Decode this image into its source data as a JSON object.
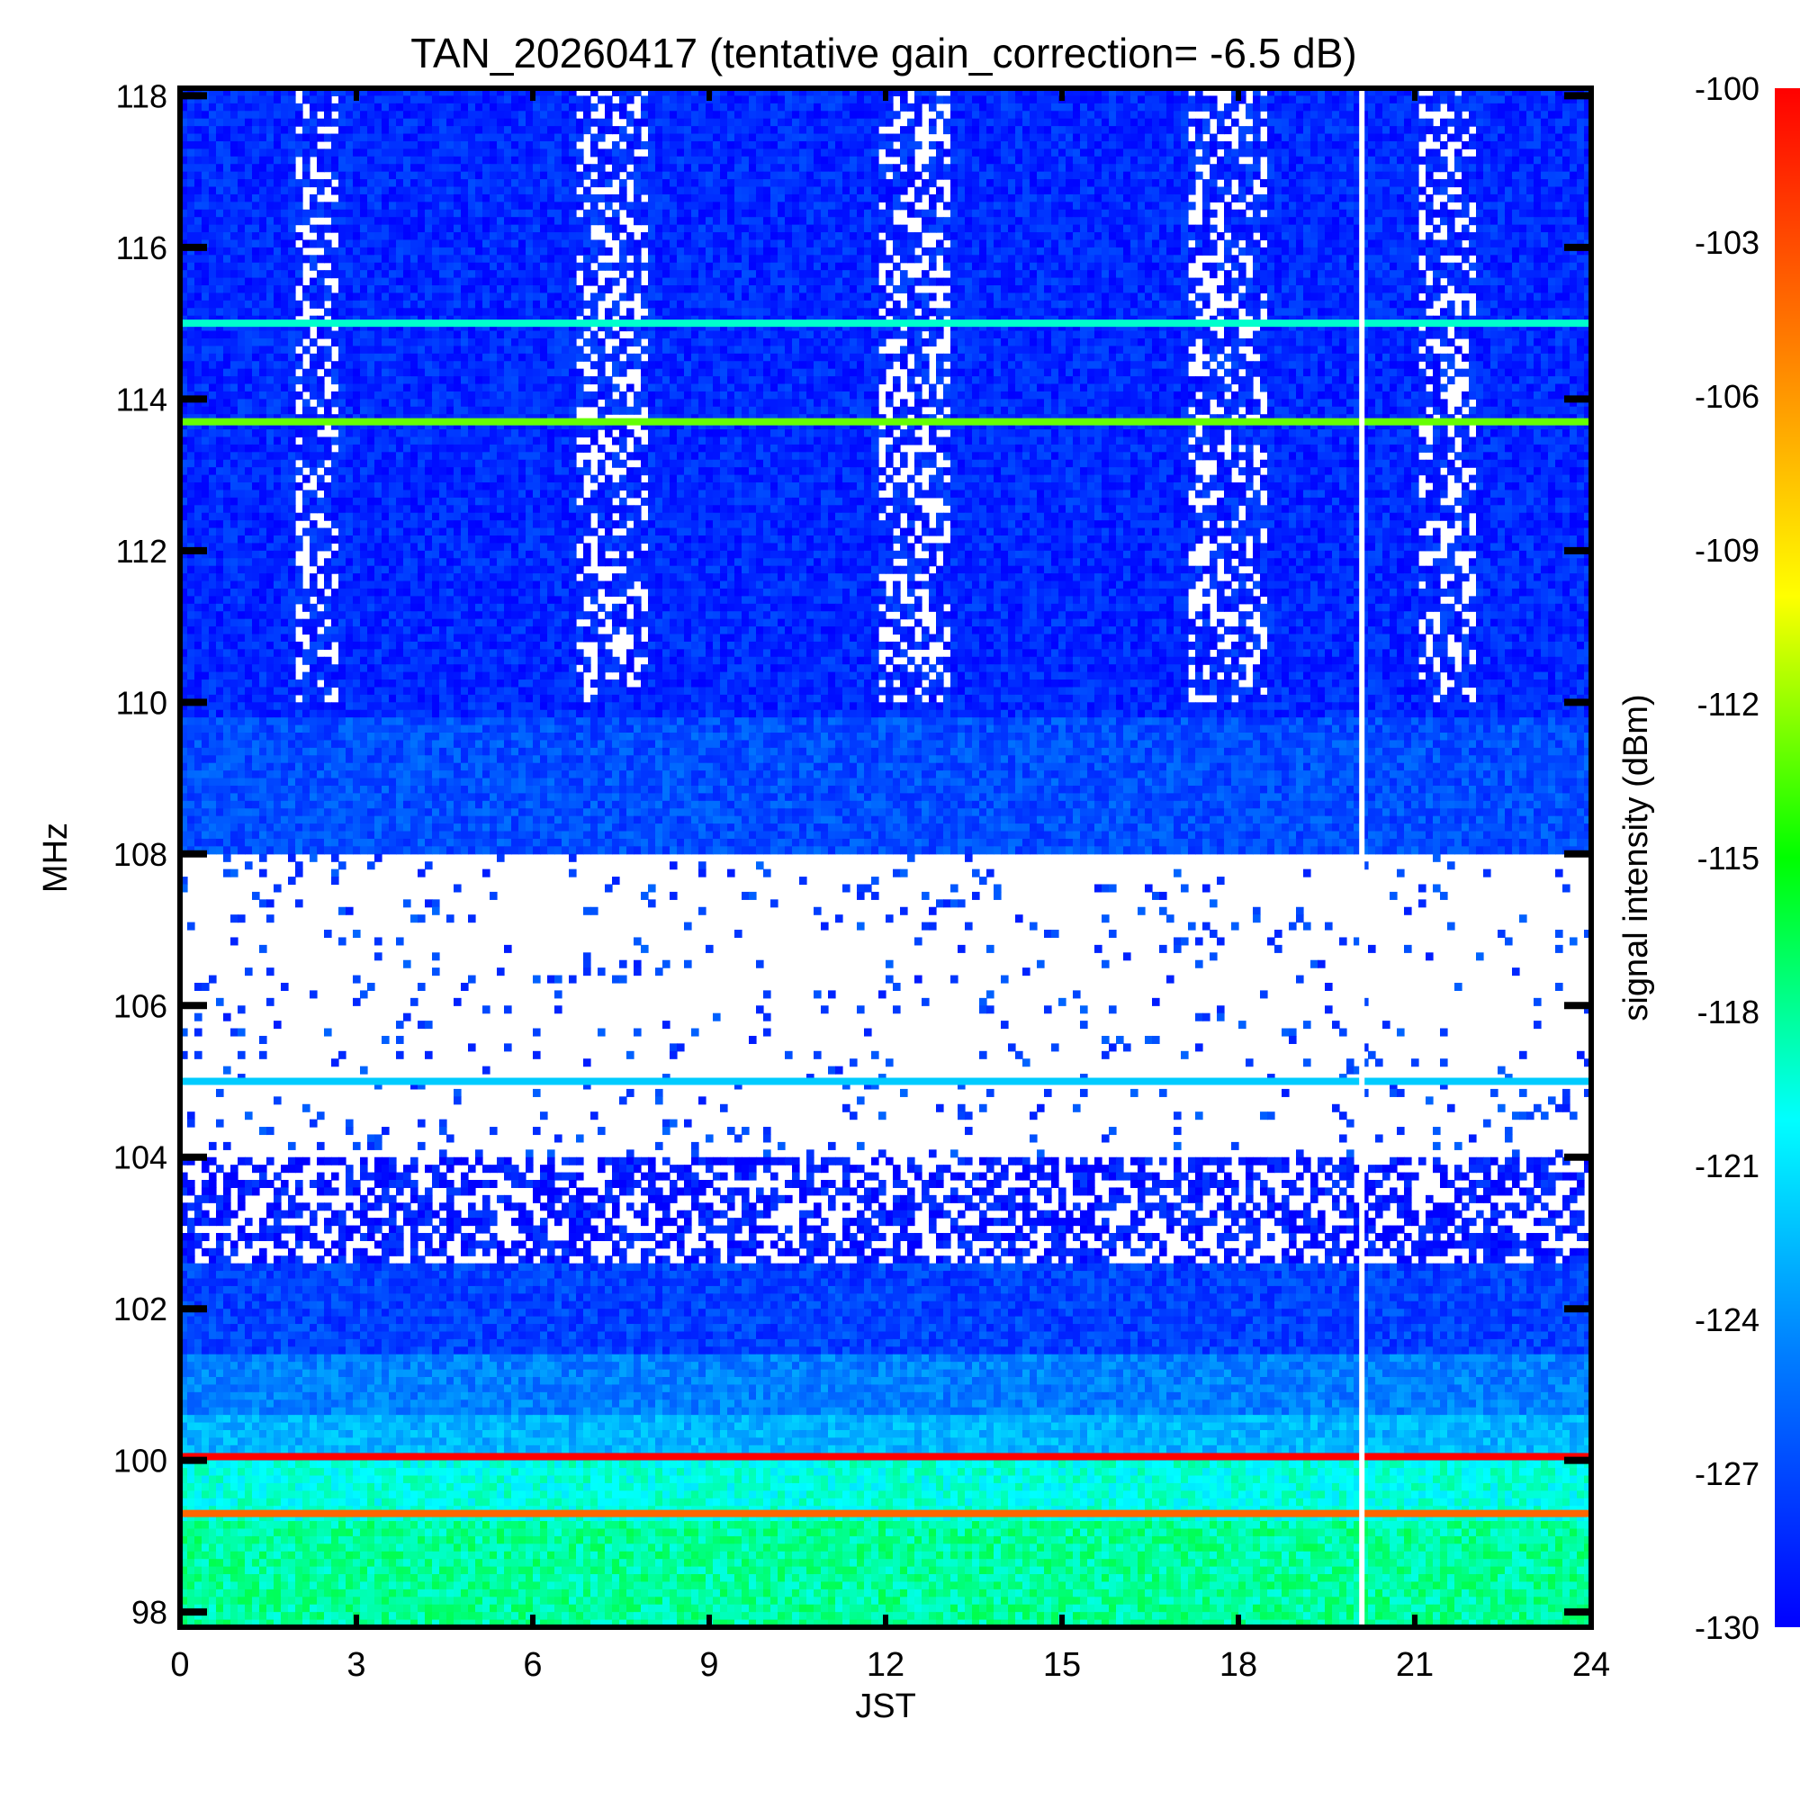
{
  "chart_data": {
    "type": "heatmap",
    "title": "TAN_20260417 (tentative gain_correction= -6.5 dB)",
    "xlabel": "JST",
    "ylabel": "MHz",
    "colorbar_label": "signal intensity (dBm)",
    "x_range": [
      0,
      24
    ],
    "y_range": [
      97.8,
      118.1
    ],
    "x_ticks": [
      "0",
      "3",
      "6",
      "9",
      "12",
      "15",
      "18",
      "21",
      "24"
    ],
    "y_ticks": [
      "98",
      "100",
      "102",
      "104",
      "106",
      "108",
      "110",
      "112",
      "114",
      "116",
      "118"
    ],
    "colorbar_range": [
      -130,
      -100
    ],
    "colorbar_ticks": [
      "-100",
      "-103",
      "-106",
      "-109",
      "-112",
      "-115",
      "-118",
      "-121",
      "-124",
      "-127",
      "-130"
    ],
    "colormap": [
      "#0000ff",
      "#0080ff",
      "#00ffff",
      "#00ff00",
      "#ffff00",
      "#ff8000",
      "#ff0000"
    ],
    "data_gap_jst": 20.1,
    "features": {
      "background_bands": [
        {
          "from_mhz": 97.8,
          "to_mhz": 99.2,
          "dbm": -118
        },
        {
          "from_mhz": 99.2,
          "to_mhz": 100.0,
          "dbm": -119.5
        },
        {
          "from_mhz": 100.0,
          "to_mhz": 100.6,
          "dbm": -123
        },
        {
          "from_mhz": 100.6,
          "to_mhz": 101.4,
          "dbm": -125
        },
        {
          "from_mhz": 101.4,
          "to_mhz": 102.6,
          "dbm": -127.5
        },
        {
          "from_mhz": 102.6,
          "to_mhz": 104.0,
          "dbm": -129
        },
        {
          "from_mhz": 108.0,
          "to_mhz": 109.8,
          "dbm": -127
        },
        {
          "from_mhz": 109.8,
          "to_mhz": 114.0,
          "dbm": -128.5
        },
        {
          "from_mhz": 114.0,
          "to_mhz": 118.1,
          "dbm": -128.5
        }
      ],
      "constant_lines": [
        {
          "mhz": 100.05,
          "dbm": -100
        },
        {
          "mhz": 105.0,
          "dbm": -122
        },
        {
          "mhz": 113.7,
          "dbm": -113
        },
        {
          "mhz": 115.0,
          "dbm": -119
        },
        {
          "mhz": 99.3,
          "dbm": -104
        }
      ],
      "quiet_region_mhz": [
        104.0,
        108.0
      ],
      "noise_bursts_jst": [
        {
          "center": 2.3,
          "width": 0.8
        },
        {
          "center": 7.3,
          "width": 1.2
        },
        {
          "center": 12.5,
          "width": 1.3
        },
        {
          "center": 17.8,
          "width": 1.4
        },
        {
          "center": 21.5,
          "width": 1.0
        }
      ]
    }
  }
}
